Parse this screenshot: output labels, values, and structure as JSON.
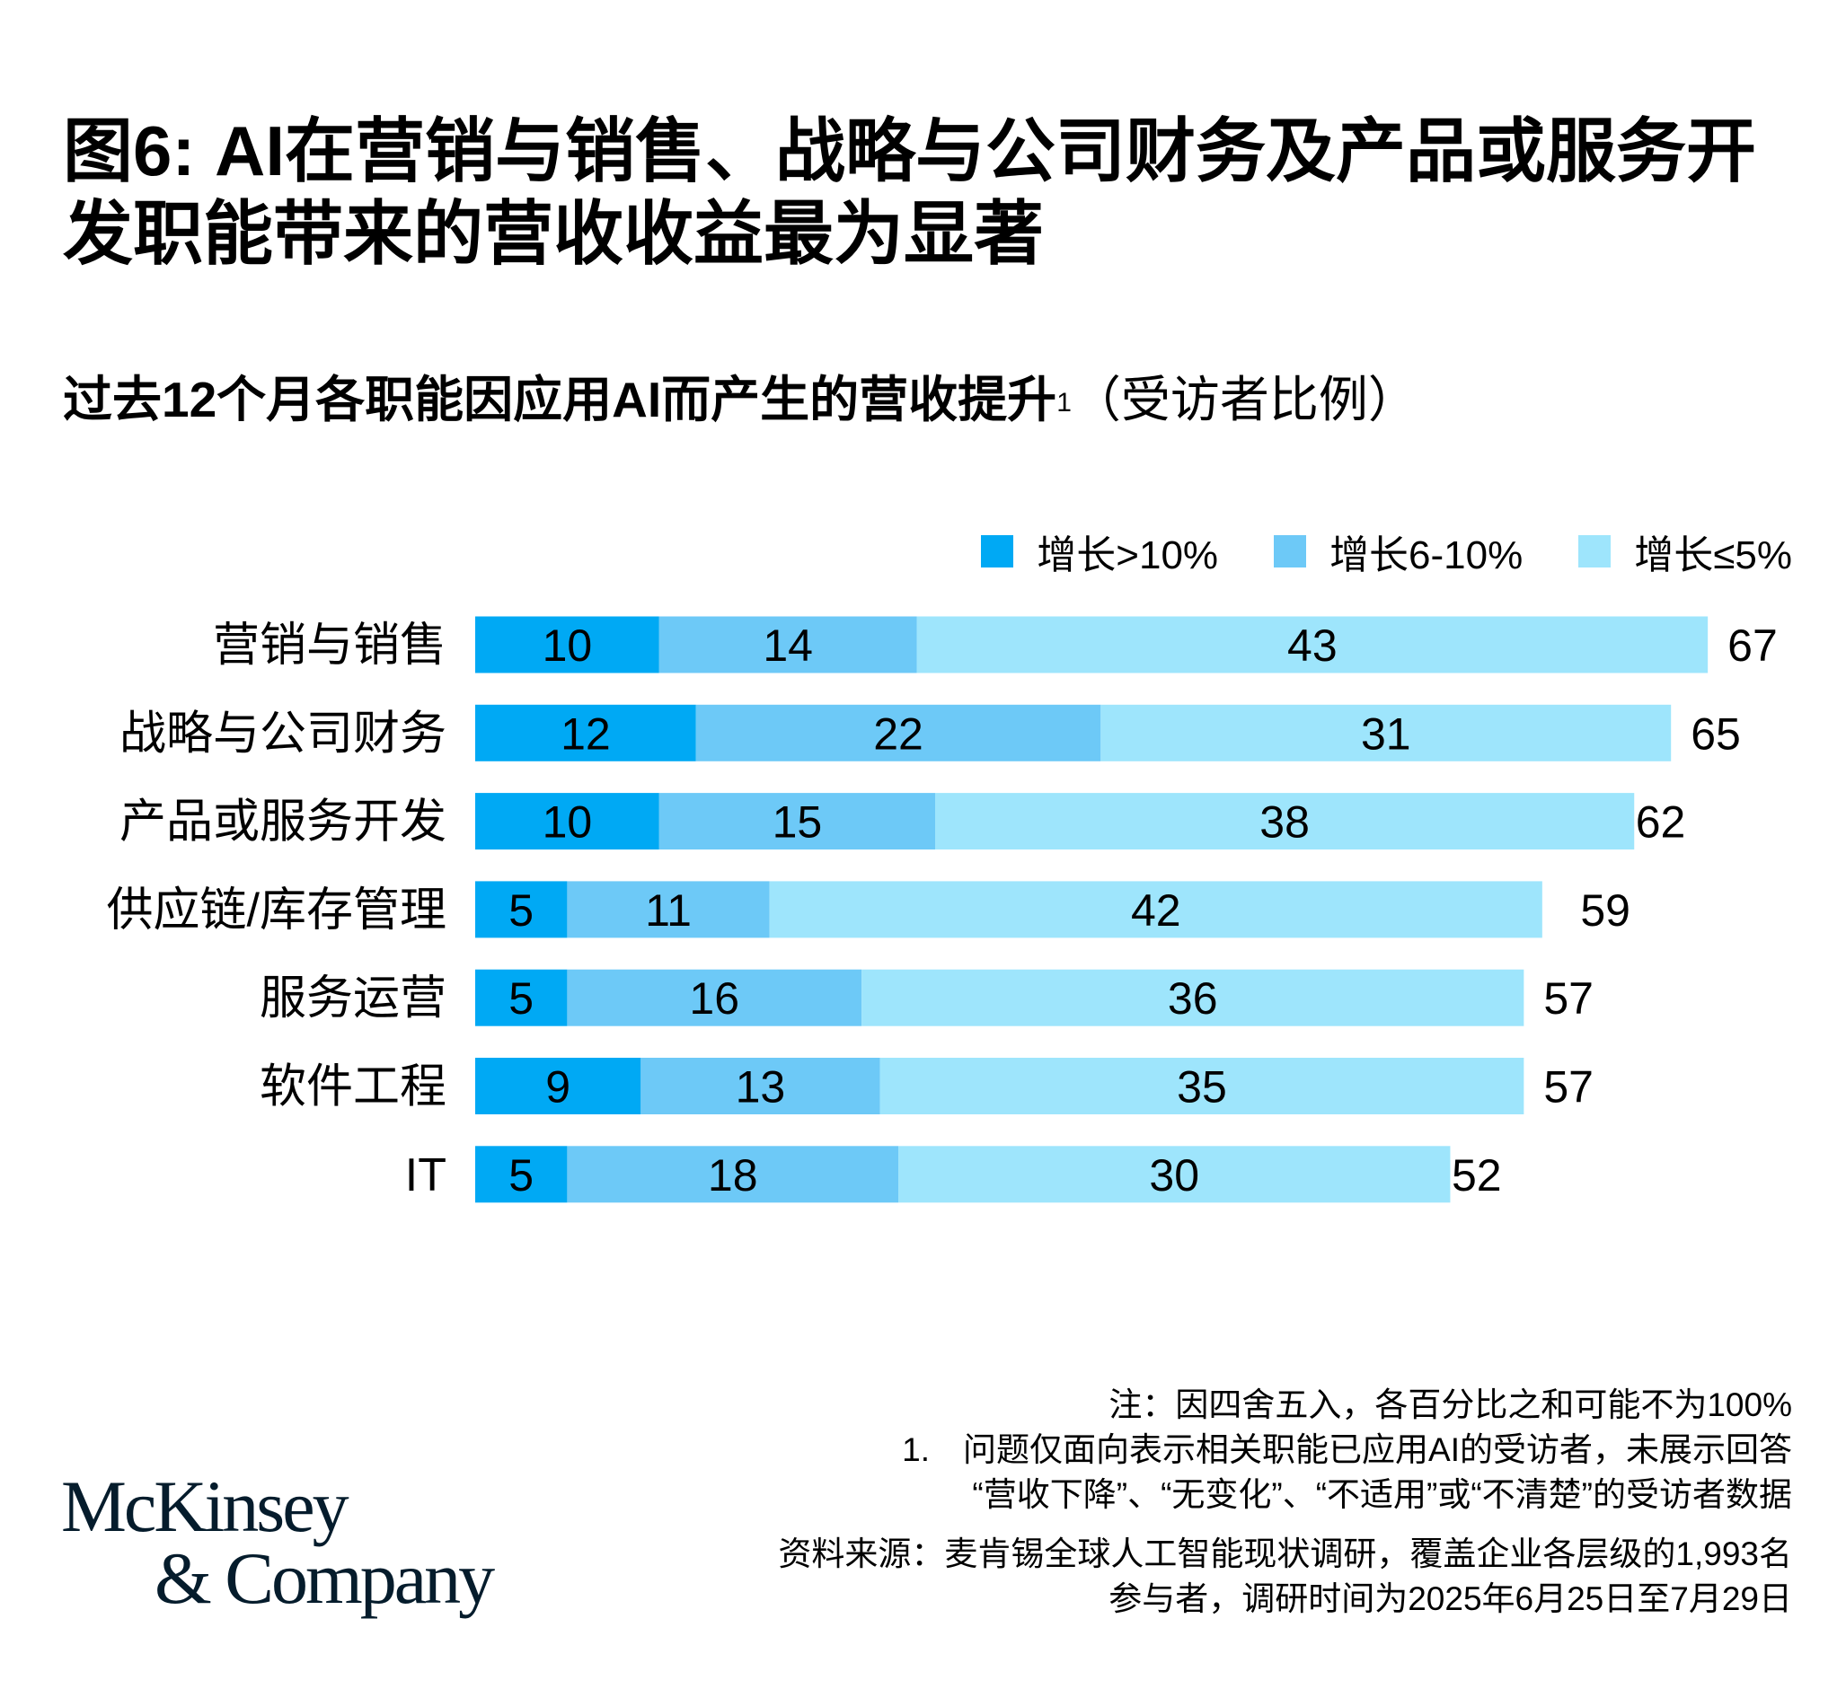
{
  "title": "图6: AI在营销与销售、战略与公司财务及产品或服务开发职能带来的营收收益最为显著",
  "subtitle": {
    "main": "过去12个月各职能因应用AI而产生的营收提升",
    "footnote_mark": "1",
    "unit": "（受访者比例）"
  },
  "colors": {
    "gt10": "#00a9f4",
    "6to10": "#6dc9f7",
    "le5": "#9ee5fc",
    "logo": "#051c2c"
  },
  "chart_data": {
    "type": "bar",
    "orientation": "horizontal",
    "stacked": true,
    "categories": [
      "营销与销售",
      "战略与公司财务",
      "产品或服务开发",
      "供应链/库存管理",
      "服务运营",
      "软件工程",
      "IT"
    ],
    "series": [
      {
        "name": "增长>10%",
        "color": "#00a9f4",
        "values": [
          10,
          12,
          10,
          5,
          5,
          9,
          5
        ]
      },
      {
        "name": "增长6-10%",
        "color": "#6dc9f7",
        "values": [
          14,
          22,
          15,
          11,
          16,
          13,
          18
        ]
      },
      {
        "name": "增长≤5%",
        "color": "#9ee5fc",
        "values": [
          43,
          31,
          38,
          42,
          36,
          35,
          30
        ]
      }
    ],
    "totals": [
      67,
      65,
      62,
      59,
      57,
      57,
      52
    ],
    "legend_position": "top-right",
    "grid": false
  },
  "notes": {
    "note": "注：因四舍五入，各百分比之和可能不为100%",
    "footnote_1_line1": "1.　问题仅面向表示相关职能已应用AI的受访者，未展示回答",
    "footnote_1_line2": "“营收下降”、“无变化”、“不适用”或“不清楚”的受访者数据",
    "source_line1": "资料来源：麦肯锡全球人工智能现状调研，覆盖企业各层级的1,993名",
    "source_line2": "参与者，调研时间为2025年6月25日至7月29日"
  },
  "logo": {
    "line1": "McKinsey",
    "line2": "& Company"
  }
}
